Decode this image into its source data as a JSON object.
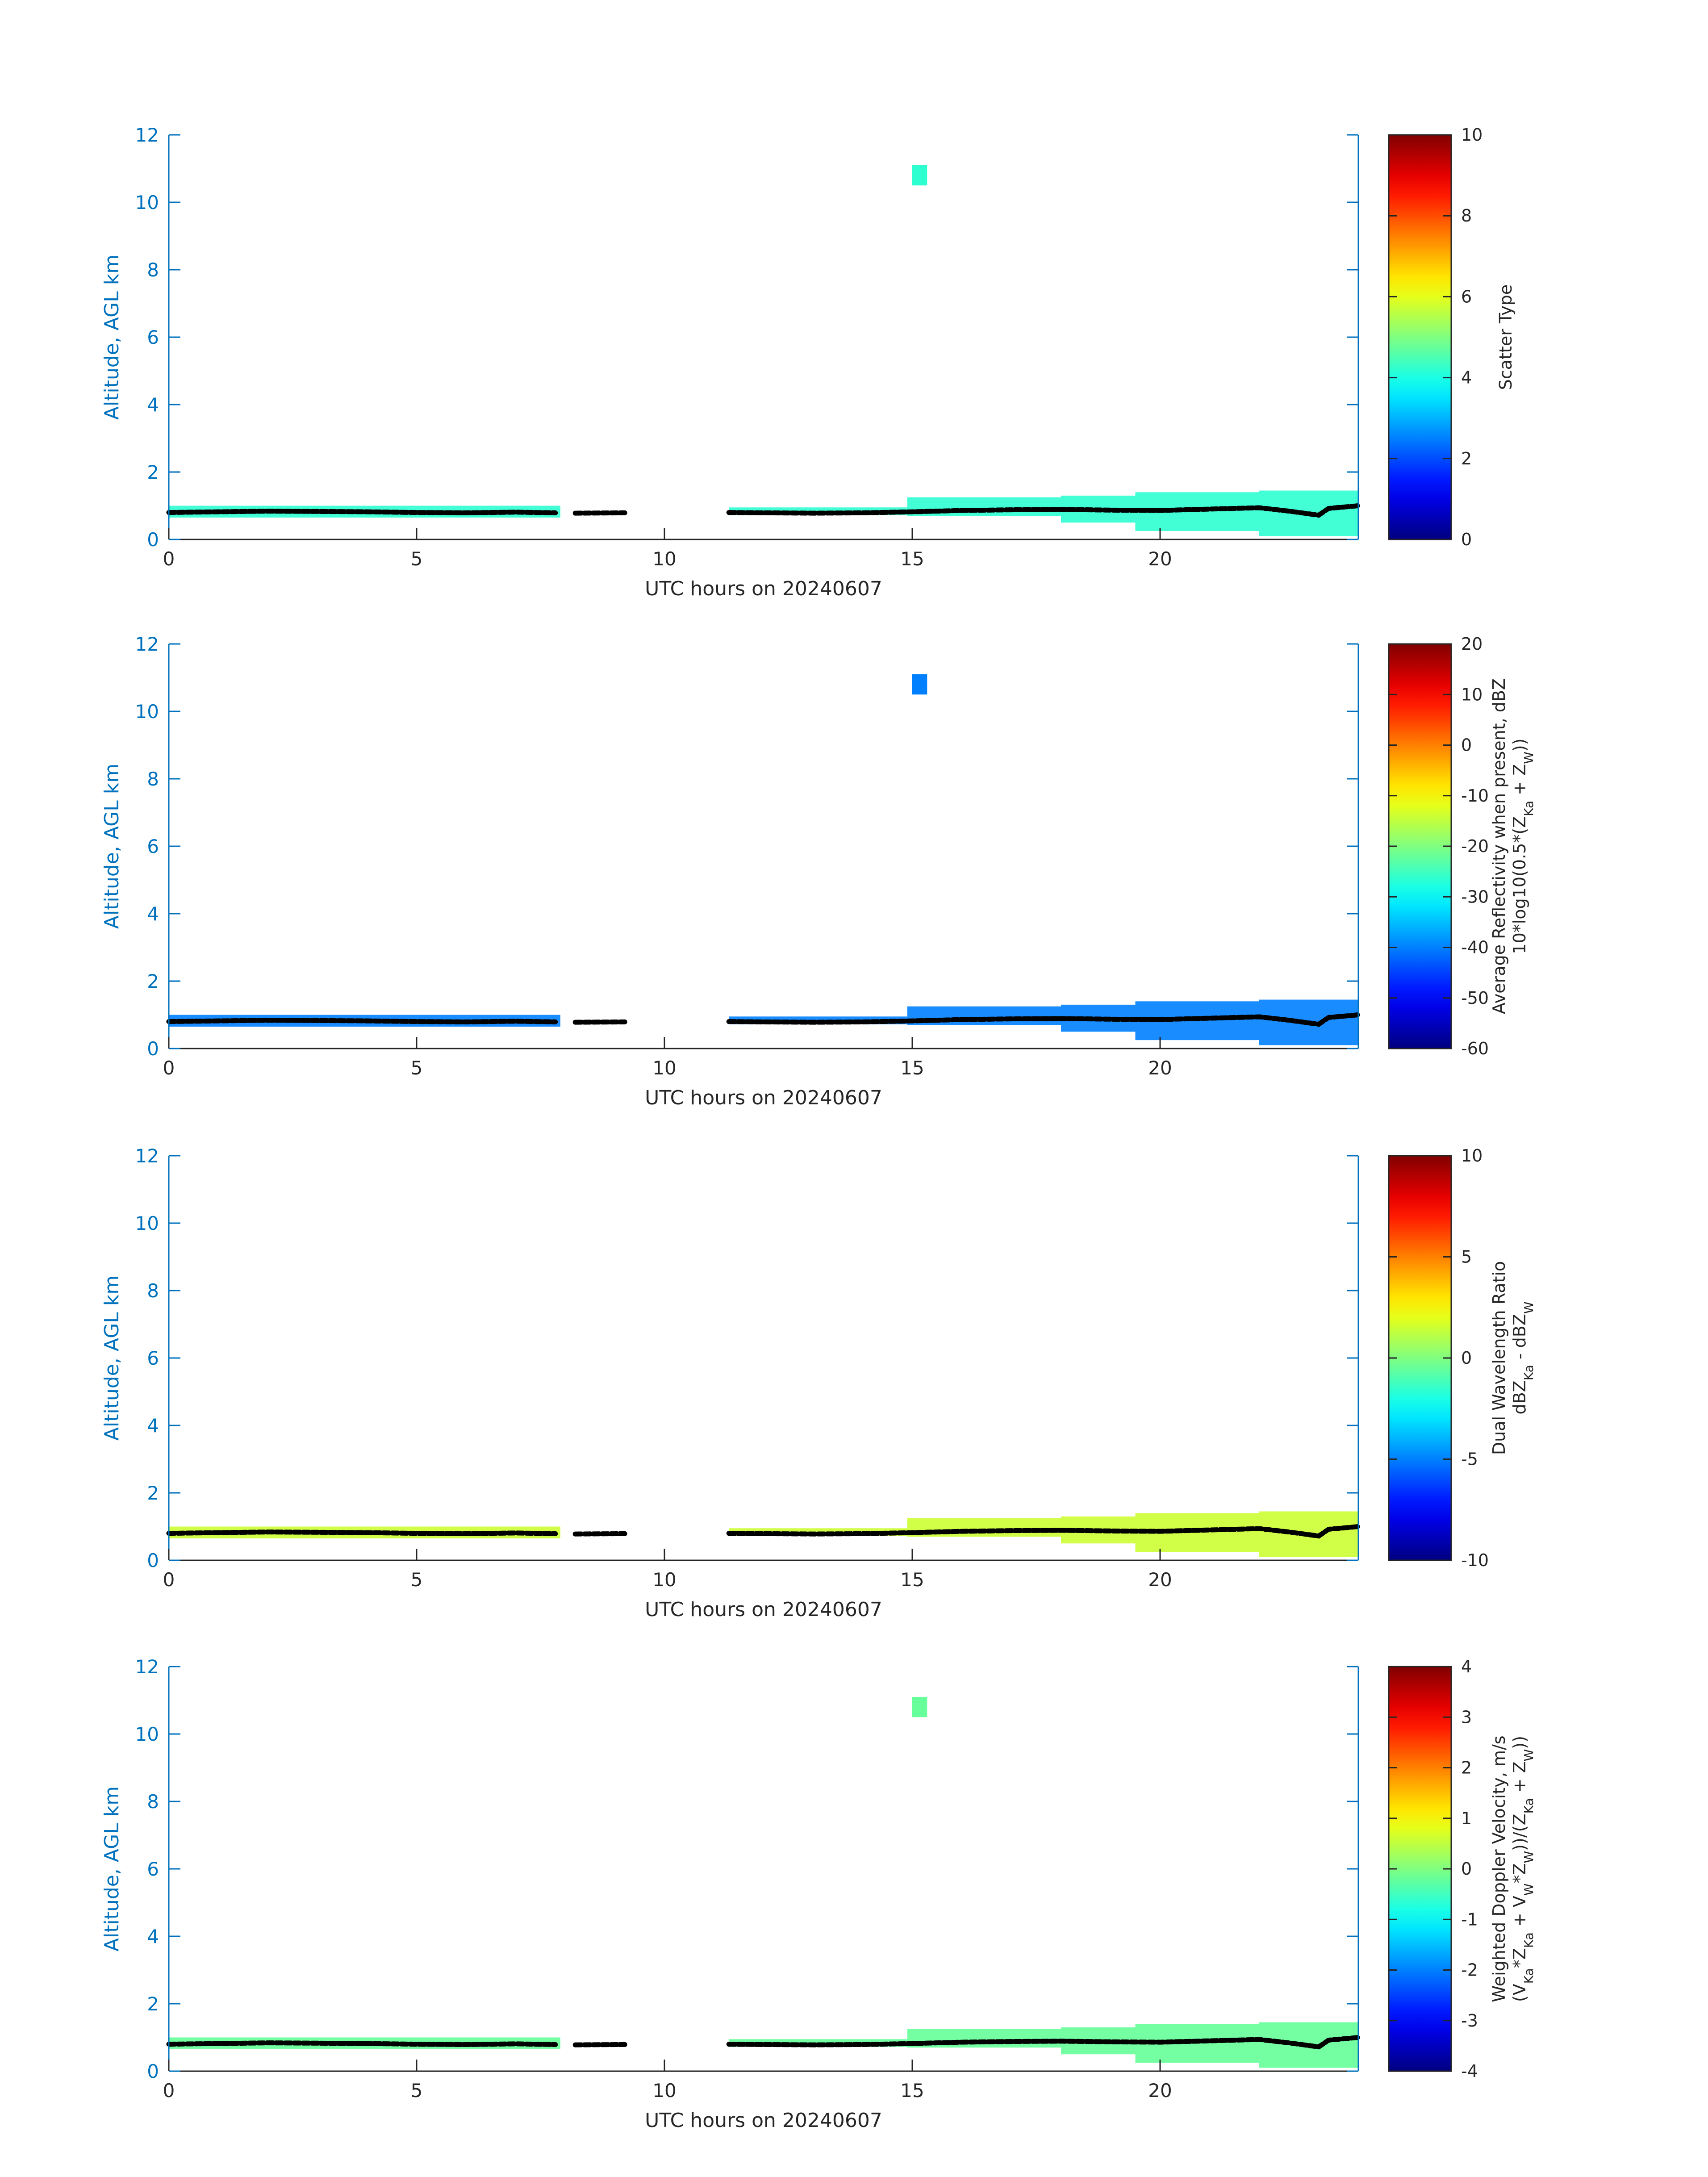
{
  "figure": {
    "xlabel": "UTC hours on 20240607",
    "ylabel": "Altitude, AGL km"
  },
  "chart_data": [
    {
      "type": "heatmap",
      "xlabel": "UTC hours on 20240607",
      "ylabel": "Altitude, AGL km",
      "xlim": [
        0,
        24
      ],
      "ylim": [
        0,
        12
      ],
      "xticks": [
        0,
        5,
        10,
        15,
        20
      ],
      "yticks": [
        0,
        2,
        4,
        6,
        8,
        10,
        12
      ],
      "colorbar": {
        "label_lines": [
          "Scatter Type"
        ],
        "range": [
          0,
          10
        ],
        "ticks": [
          0,
          2,
          4,
          6,
          8,
          10
        ],
        "colormap": "jet"
      },
      "echo_color": 4.2,
      "cloud_base_color": "#000000"
    },
    {
      "type": "heatmap",
      "xlabel": "UTC hours on 20240607",
      "ylabel": "Altitude, AGL km",
      "xlim": [
        0,
        24
      ],
      "ylim": [
        0,
        12
      ],
      "xticks": [
        0,
        5,
        10,
        15,
        20
      ],
      "yticks": [
        0,
        2,
        4,
        6,
        8,
        10,
        12
      ],
      "colorbar": {
        "label_lines": [
          "Average Reflectivity when present, dBZ",
          "10*log10(0.5*(Z_Ka + Z_W))"
        ],
        "range": [
          -60,
          20
        ],
        "ticks": [
          -60,
          -50,
          -40,
          -30,
          -20,
          -10,
          0,
          10,
          20
        ],
        "colormap": "jet"
      },
      "echo_color": -40,
      "cloud_base_color": "#000000"
    },
    {
      "type": "heatmap",
      "xlabel": "UTC hours on 20240607",
      "ylabel": "Altitude, AGL km",
      "xlim": [
        0,
        24
      ],
      "ylim": [
        0,
        12
      ],
      "xticks": [
        0,
        5,
        10,
        15,
        20
      ],
      "yticks": [
        0,
        2,
        4,
        6,
        8,
        10,
        12
      ],
      "colorbar": {
        "label_lines": [
          "Dual Wavelength Ratio",
          "dBZ_Ka - dBZ_W"
        ],
        "range": [
          -10,
          10
        ],
        "ticks": [
          -10,
          -5,
          0,
          5,
          10
        ],
        "colormap": "jet"
      },
      "echo_color": 1.5,
      "cloud_base_color": "#000000"
    },
    {
      "type": "heatmap",
      "xlabel": "UTC hours on 20240607",
      "ylabel": "Altitude, AGL km",
      "xlim": [
        0,
        24
      ],
      "ylim": [
        0,
        12
      ],
      "xticks": [
        0,
        5,
        10,
        15,
        20
      ],
      "yticks": [
        0,
        2,
        4,
        6,
        8,
        10,
        12
      ],
      "colorbar": {
        "label_lines": [
          "Weighted Doppler Velocity, m/s",
          "(V_Ka*Z_Ka + V_W*Z_W))/(Z_Ka + Z_W))"
        ],
        "range": [
          -4,
          4
        ],
        "ticks": [
          -4,
          -3,
          -2,
          -1,
          0,
          1,
          2,
          3,
          4
        ],
        "colormap": "jet"
      },
      "echo_color": -0.2,
      "cloud_base_color": "#000000"
    }
  ],
  "echo_layer": [
    {
      "x0": 0.0,
      "x1": 7.9,
      "bottom": 0.65,
      "top": 1.0
    },
    {
      "x0": 11.3,
      "x1": 14.9,
      "bottom": 0.72,
      "top": 0.95
    },
    {
      "x0": 14.9,
      "x1": 18.0,
      "bottom": 0.7,
      "top": 1.25
    },
    {
      "x0": 18.0,
      "x1": 19.5,
      "bottom": 0.5,
      "top": 1.3
    },
    {
      "x0": 19.5,
      "x1": 22.0,
      "bottom": 0.25,
      "top": 1.4
    },
    {
      "x0": 22.0,
      "x1": 24.0,
      "bottom": 0.1,
      "top": 1.45
    }
  ],
  "high_cloud": {
    "x0": 15.0,
    "x1": 15.3,
    "bottom": 10.5,
    "top": 11.1
  },
  "cloud_base": [
    [
      0.0,
      0.8
    ],
    [
      1.0,
      0.82
    ],
    [
      2.0,
      0.84
    ],
    [
      3.0,
      0.83
    ],
    [
      4.0,
      0.82
    ],
    [
      5.0,
      0.8
    ],
    [
      6.0,
      0.79
    ],
    [
      7.0,
      0.81
    ],
    [
      7.8,
      0.79
    ],
    null,
    [
      8.2,
      0.78
    ],
    [
      9.2,
      0.79
    ],
    null,
    [
      11.3,
      0.8
    ],
    [
      12.0,
      0.79
    ],
    [
      13.0,
      0.78
    ],
    [
      14.0,
      0.79
    ],
    [
      15.0,
      0.82
    ],
    [
      16.0,
      0.86
    ],
    [
      17.0,
      0.88
    ],
    [
      18.0,
      0.89
    ],
    [
      19.0,
      0.87
    ],
    [
      20.0,
      0.86
    ],
    [
      21.0,
      0.9
    ],
    [
      22.0,
      0.94
    ],
    [
      22.6,
      0.84
    ],
    [
      23.2,
      0.72
    ],
    [
      23.4,
      0.92
    ],
    [
      24.0,
      1.0
    ]
  ]
}
